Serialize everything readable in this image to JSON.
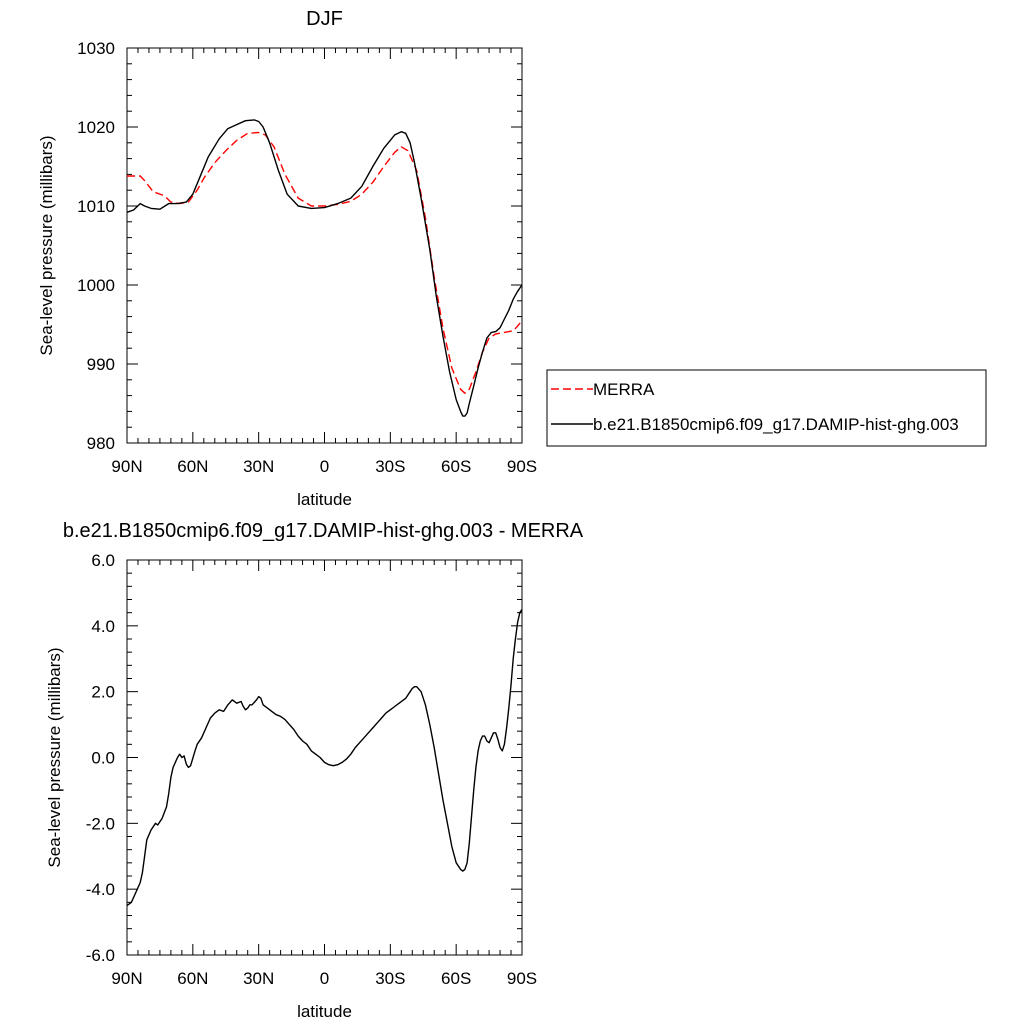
{
  "chart_data": [
    {
      "type": "line",
      "title": "DJF",
      "xlabel": "latitude",
      "ylabel": "Sea-level pressure (millibars)",
      "xlim": [
        90,
        -90
      ],
      "ylim": [
        980,
        1030
      ],
      "xticks": [
        90,
        60,
        30,
        0,
        -30,
        -60,
        -90
      ],
      "xtick_labels": [
        "90N",
        "60N",
        "30N",
        "0",
        "30S",
        "60S",
        "90S"
      ],
      "yticks": [
        980,
        990,
        1000,
        1010,
        1020,
        1030
      ],
      "ytick_labels": [
        "980",
        "990",
        "1000",
        "1010",
        "1020",
        "1030"
      ],
      "legend_position": "right",
      "series": [
        {
          "name": "MERRA",
          "color": "#ff0000",
          "dash": "dashed",
          "x": [
            90,
            84,
            82,
            78,
            73,
            70,
            66,
            62,
            58,
            55,
            50,
            45,
            40,
            35,
            30,
            27,
            23,
            18,
            12,
            6,
            0,
            -6,
            -12,
            -17,
            -22,
            -27,
            -32,
            -35,
            -38,
            -42,
            -46,
            -50,
            -54,
            -58,
            -62,
            -64,
            -66,
            -69,
            -72,
            -75,
            -78,
            -82,
            -86,
            -88,
            -90
          ],
          "y": [
            1013.8,
            1013.8,
            1013.2,
            1011.8,
            1011.3,
            1010.5,
            1010.3,
            1010.5,
            1012.0,
            1013.5,
            1015.5,
            1017.0,
            1018.3,
            1019.2,
            1019.3,
            1019.0,
            1017.5,
            1014.0,
            1011.0,
            1010.0,
            1010.0,
            1010.2,
            1010.6,
            1011.5,
            1013.0,
            1015.0,
            1016.8,
            1017.5,
            1017.0,
            1014.5,
            1008.5,
            1001.0,
            994.5,
            989.5,
            986.8,
            986.3,
            986.8,
            989.0,
            991.5,
            993.3,
            993.8,
            994.0,
            994.2,
            994.8,
            995.5
          ]
        },
        {
          "name": "b.e21.B1850cmip6.f09_g17.DAMIP-hist-ghg.003",
          "color": "#000000",
          "dash": "solid",
          "x": [
            90,
            87,
            84,
            82,
            79,
            75,
            71,
            67,
            63,
            60,
            57,
            53,
            48,
            44,
            40,
            36,
            32,
            30,
            28,
            25,
            21,
            17,
            12,
            6,
            0,
            -6,
            -12,
            -17,
            -22,
            -27,
            -32,
            -35,
            -37,
            -39,
            -41,
            -44,
            -48,
            -51,
            -54,
            -57,
            -60,
            -62,
            -63,
            -64,
            -65,
            -66,
            -68,
            -70,
            -72,
            -74,
            -76,
            -78,
            -80,
            -82,
            -84,
            -86,
            -88,
            -90
          ],
          "y": [
            1009.2,
            1009.5,
            1010.3,
            1010.0,
            1009.7,
            1009.6,
            1010.3,
            1010.3,
            1010.5,
            1011.5,
            1013.5,
            1016.2,
            1018.5,
            1019.8,
            1020.3,
            1020.8,
            1020.9,
            1020.7,
            1020.0,
            1018.0,
            1014.5,
            1011.5,
            1010.0,
            1009.7,
            1009.8,
            1010.3,
            1011.0,
            1012.5,
            1015.0,
            1017.3,
            1019.0,
            1019.4,
            1019.2,
            1018.0,
            1015.5,
            1011.0,
            1004.5,
            998.5,
            993.5,
            989.0,
            985.5,
            984.0,
            983.4,
            983.4,
            983.8,
            985.0,
            987.2,
            989.5,
            991.5,
            993.3,
            994.0,
            994.1,
            994.6,
            995.7,
            996.8,
            998.2,
            999.2,
            1000.0
          ]
        }
      ]
    },
    {
      "type": "line",
      "title": "b.e21.B1850cmip6.f09_g17.DAMIP-hist-ghg.003 - MERRA",
      "xlabel": "latitude",
      "ylabel": "Sea-level pressure (millibars)",
      "xlim": [
        90,
        -90
      ],
      "ylim": [
        -6,
        6
      ],
      "xticks": [
        90,
        60,
        30,
        0,
        -30,
        -60,
        -90
      ],
      "xtick_labels": [
        "90N",
        "60N",
        "30N",
        "0",
        "30S",
        "60S",
        "90S"
      ],
      "yticks": [
        -6,
        -4,
        -2,
        0,
        2,
        4,
        6
      ],
      "ytick_labels": [
        "-6.0",
        "-4.0",
        "-2.0",
        "0.0",
        "2.0",
        "4.0",
        "6.0"
      ],
      "series": [
        {
          "name": "b.e21.B1850cmip6.f09_g17.DAMIP-hist-ghg.003 - MERRA",
          "color": "#000000",
          "dash": "solid",
          "x": [
            90,
            88,
            86,
            84,
            83,
            82,
            81,
            79,
            77,
            76,
            75,
            74,
            72,
            71,
            70,
            69,
            67,
            66,
            65,
            64,
            63,
            62,
            61,
            59,
            58,
            56,
            54,
            52,
            50,
            48,
            46,
            44,
            42,
            41,
            40,
            38,
            37,
            36,
            35,
            34,
            33,
            31,
            30,
            29,
            28,
            26,
            24,
            22,
            20,
            18,
            16,
            14,
            12,
            10,
            8,
            6,
            4,
            2,
            0,
            -2,
            -4,
            -6,
            -8,
            -10,
            -12,
            -14,
            -16,
            -18,
            -20,
            -22,
            -24,
            -26,
            -28,
            -30,
            -32,
            -34,
            -36,
            -37,
            -38,
            -39,
            -40,
            -41,
            -42,
            -44,
            -46,
            -48,
            -50,
            -52,
            -54,
            -56,
            -58,
            -60,
            -62,
            -63,
            -64,
            -65,
            -66,
            -67,
            -68,
            -69,
            -70,
            -71,
            -72,
            -73,
            -74,
            -75,
            -76,
            -77,
            -78,
            -79,
            -80,
            -81,
            -82,
            -83,
            -84,
            -85,
            -86,
            -87,
            -88,
            -89,
            -90
          ],
          "y": [
            -4.5,
            -4.4,
            -4.1,
            -3.8,
            -3.5,
            -3.0,
            -2.5,
            -2.2,
            -2.0,
            -2.05,
            -1.95,
            -1.85,
            -1.5,
            -1.1,
            -0.6,
            -0.3,
            0.0,
            0.1,
            0.0,
            0.05,
            -0.2,
            -0.3,
            -0.25,
            0.2,
            0.4,
            0.6,
            0.9,
            1.2,
            1.35,
            1.45,
            1.4,
            1.6,
            1.75,
            1.7,
            1.65,
            1.7,
            1.55,
            1.45,
            1.5,
            1.6,
            1.6,
            1.75,
            1.85,
            1.8,
            1.6,
            1.5,
            1.4,
            1.3,
            1.25,
            1.15,
            1.0,
            0.85,
            0.65,
            0.5,
            0.4,
            0.2,
            0.1,
            0.0,
            -0.15,
            -0.22,
            -0.25,
            -0.22,
            -0.15,
            -0.05,
            0.1,
            0.3,
            0.45,
            0.6,
            0.75,
            0.9,
            1.05,
            1.2,
            1.35,
            1.45,
            1.55,
            1.65,
            1.75,
            1.8,
            1.9,
            2.0,
            2.1,
            2.15,
            2.15,
            2.0,
            1.6,
            1.0,
            0.3,
            -0.5,
            -1.3,
            -2.0,
            -2.7,
            -3.2,
            -3.4,
            -3.45,
            -3.4,
            -3.2,
            -2.6,
            -1.8,
            -1.0,
            -0.3,
            0.2,
            0.5,
            0.65,
            0.65,
            0.5,
            0.45,
            0.6,
            0.75,
            0.75,
            0.55,
            0.3,
            0.2,
            0.4,
            0.9,
            1.5,
            2.2,
            3.0,
            3.6,
            4.1,
            4.4,
            4.5
          ]
        }
      ]
    }
  ]
}
